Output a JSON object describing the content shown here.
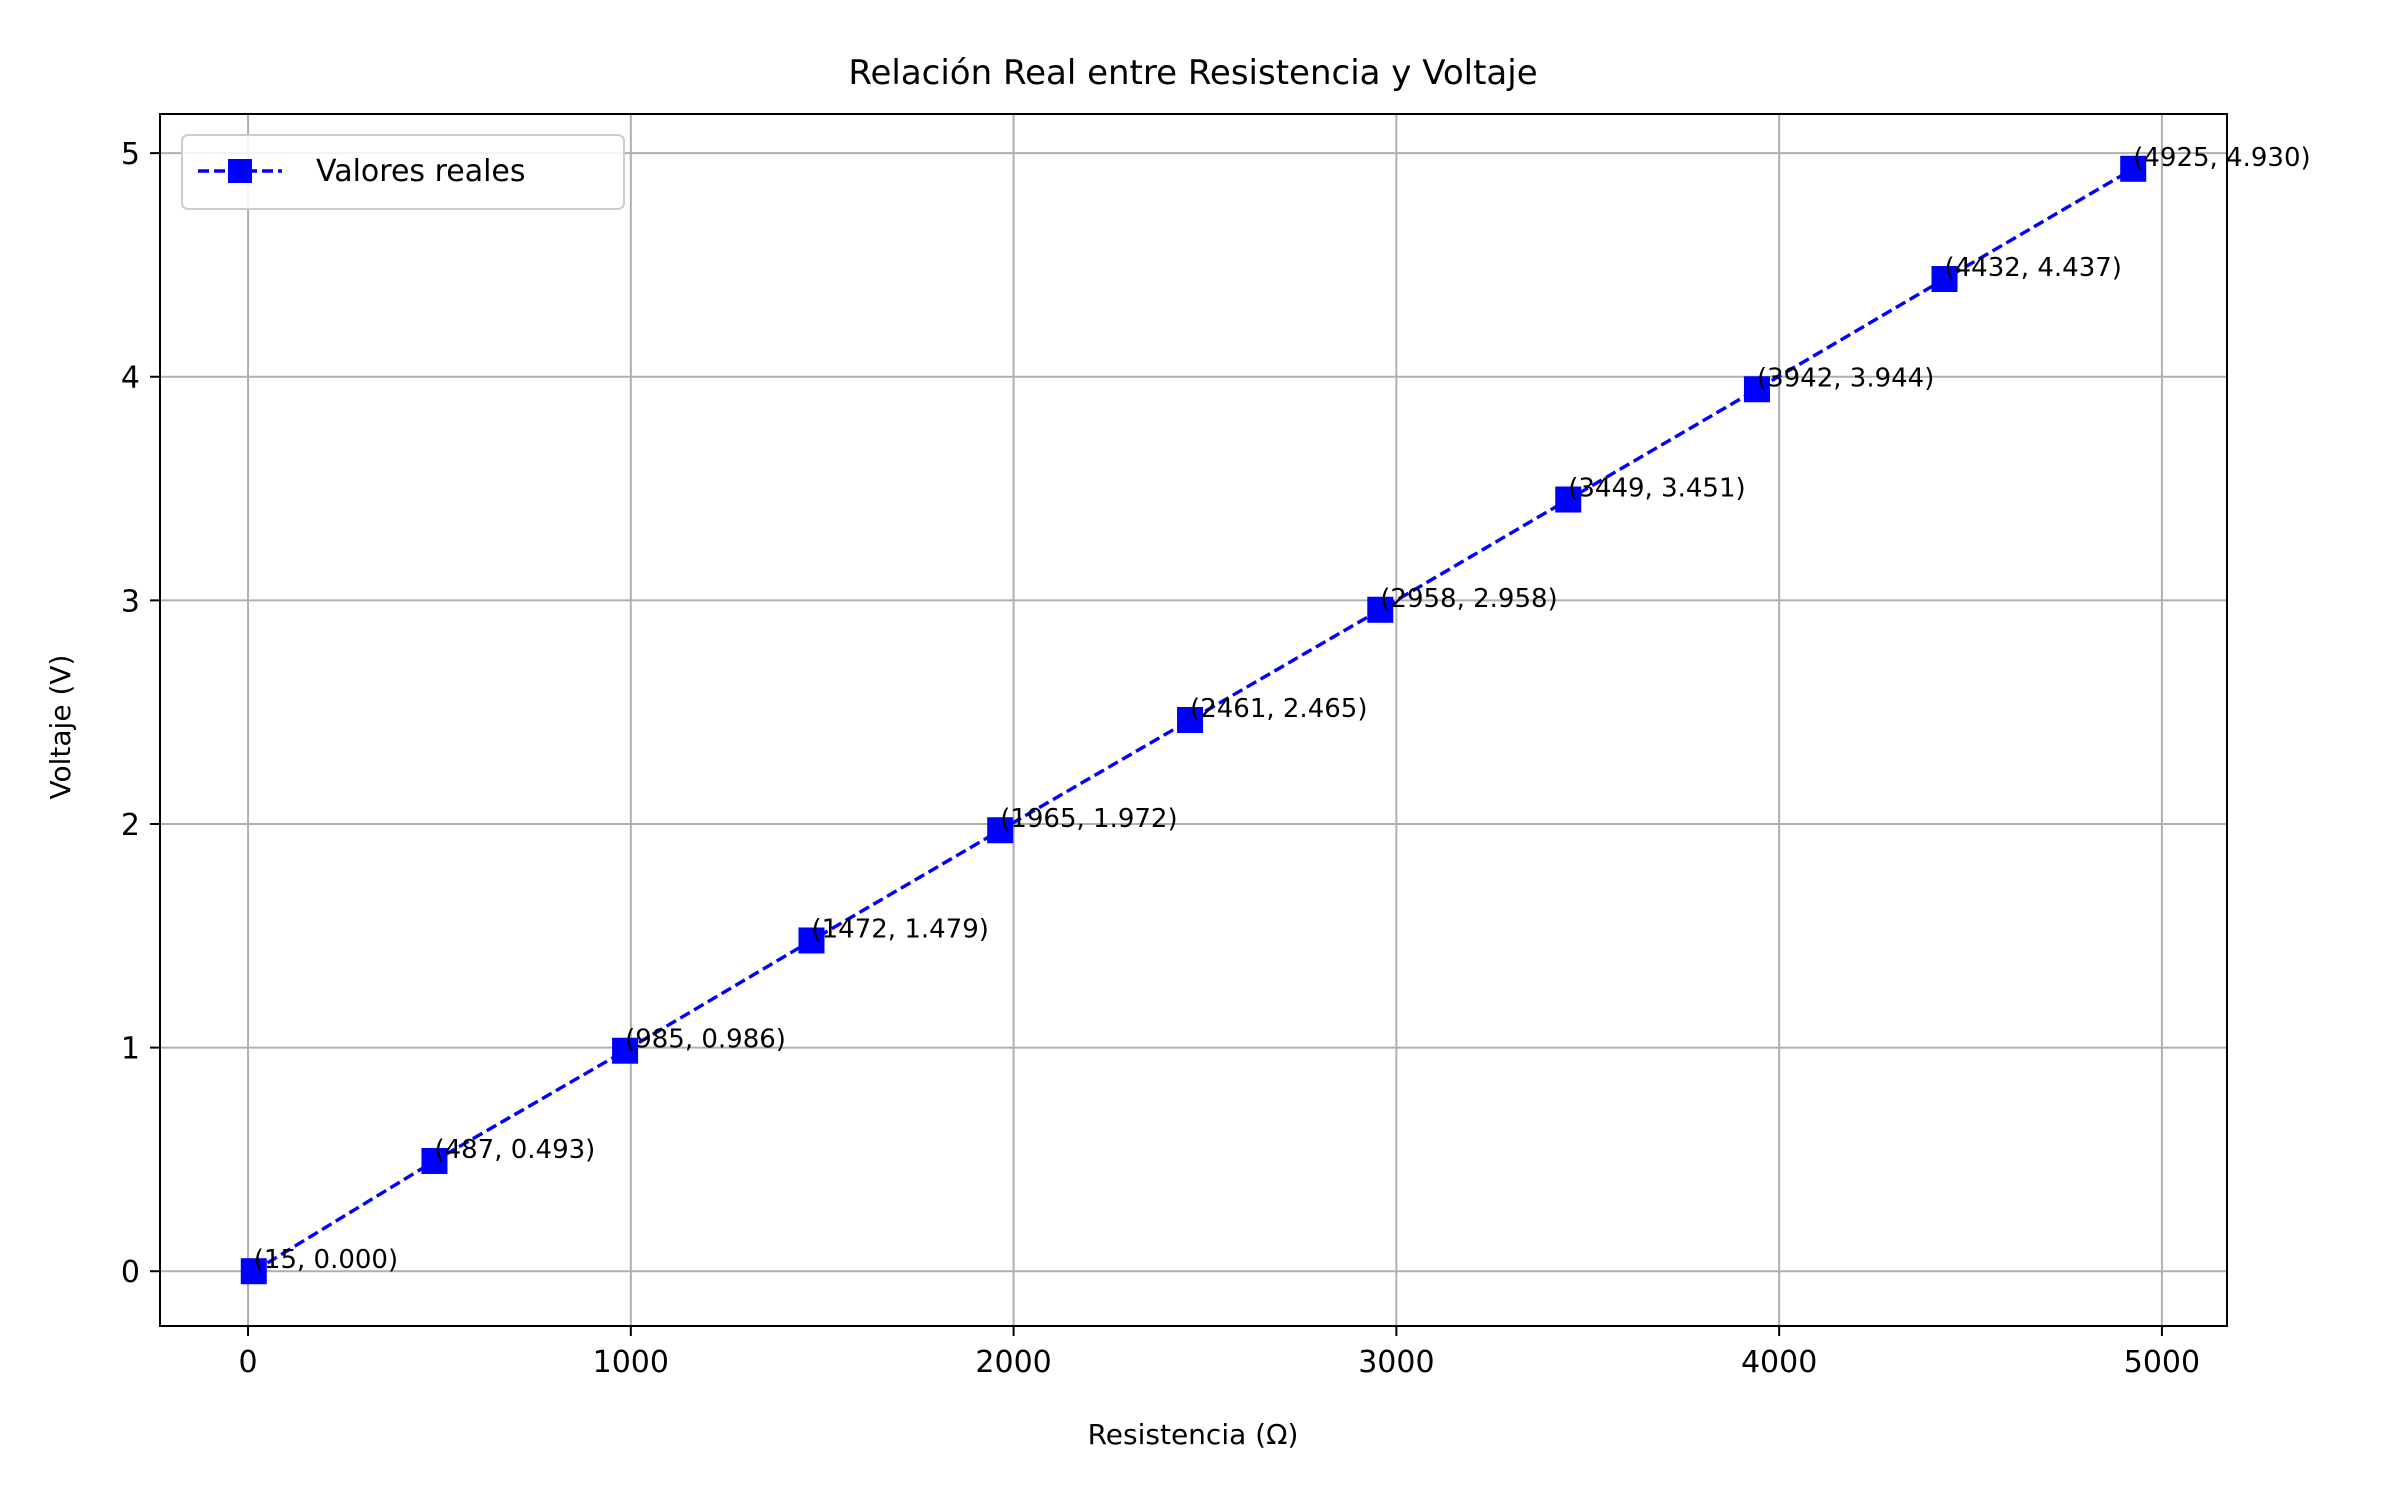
{
  "chart_data": {
    "type": "line",
    "title": "Relación Real entre Resistencia y Voltaje",
    "xlabel": "Resistencia (Ω)",
    "ylabel": "Voltaje (V)",
    "xlim": [
      -230,
      5170
    ],
    "ylim": [
      -0.245,
      5.175
    ],
    "xticks": [
      0,
      1000,
      2000,
      3000,
      4000,
      5000
    ],
    "yticks": [
      0,
      1,
      2,
      3,
      4,
      5
    ],
    "grid": true,
    "legend_position": "top-left",
    "series": [
      {
        "name": "Valores reales",
        "color": "#0000ff",
        "line_style": "dashed",
        "marker": "square",
        "x": [
          15,
          487,
          985,
          1472,
          1965,
          2461,
          2958,
          3449,
          3942,
          4432,
          4925
        ],
        "y": [
          0.0,
          0.493,
          0.986,
          1.479,
          1.972,
          2.465,
          2.958,
          3.451,
          3.944,
          4.437,
          4.93
        ],
        "point_labels": [
          "(15, 0.000)",
          "(487, 0.493)",
          "(985, 0.986)",
          "(1472, 1.479)",
          "(1965, 1.972)",
          "(2461, 2.465)",
          "(2958, 2.958)",
          "(3449, 3.451)",
          "(3942, 3.944)",
          "(4432, 4.437)",
          "(4925, 4.930)"
        ]
      }
    ]
  }
}
